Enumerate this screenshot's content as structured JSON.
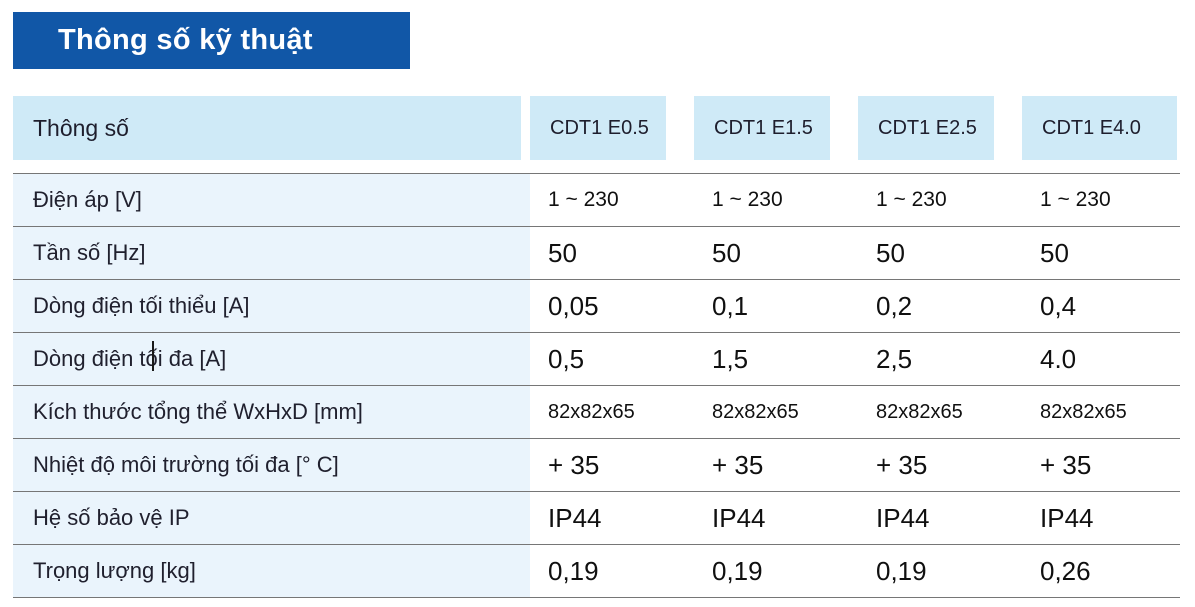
{
  "title": {
    "text": "Thông số kỹ thuật",
    "bg": "#1157a7",
    "color": "#ffffff"
  },
  "table": {
    "header": {
      "label": "Thông số",
      "columns": [
        "CDT1 E0.5",
        "CDT1 E1.5",
        "CDT1 E2.5",
        "CDT1 E4.0"
      ],
      "bg": "#cfeaf7"
    },
    "rows": [
      {
        "label": "Điện áp [V]",
        "values": [
          "1 ~ 230",
          "1 ~ 230",
          "1 ~ 230",
          "1 ~ 230"
        ]
      },
      {
        "label": "Tần số [Hz]",
        "values": [
          "50",
          "50",
          "50",
          "50"
        ]
      },
      {
        "label": "Dòng điện tối thiểu [A]",
        "values": [
          "0,05",
          "0,1",
          "0,2",
          "0,4"
        ]
      },
      {
        "label": "Dòng điện tối đa [A]",
        "values": [
          "0,5",
          "1,5",
          "2,5",
          "4.0"
        ]
      },
      {
        "label": "Kích thước tổng thể WxHxD [mm]",
        "values": [
          "82x82x65",
          "82x82x65",
          "82x82x65",
          "82x82x65"
        ]
      },
      {
        "label": "Nhiệt độ môi trường tối đa [° C]",
        "values": [
          "+ 35",
          "+ 35",
          "+ 35",
          "+ 35"
        ]
      },
      {
        "label": "Hệ số bảo vệ IP",
        "values": [
          "IP44",
          "IP44",
          "IP44",
          "IP44"
        ]
      },
      {
        "label": "Trọng lượng [kg]",
        "values": [
          "0,19",
          "0,19",
          "0,19",
          "0,26"
        ]
      }
    ],
    "row_tint": "#eaf4fc",
    "separator_color": "#767676"
  }
}
